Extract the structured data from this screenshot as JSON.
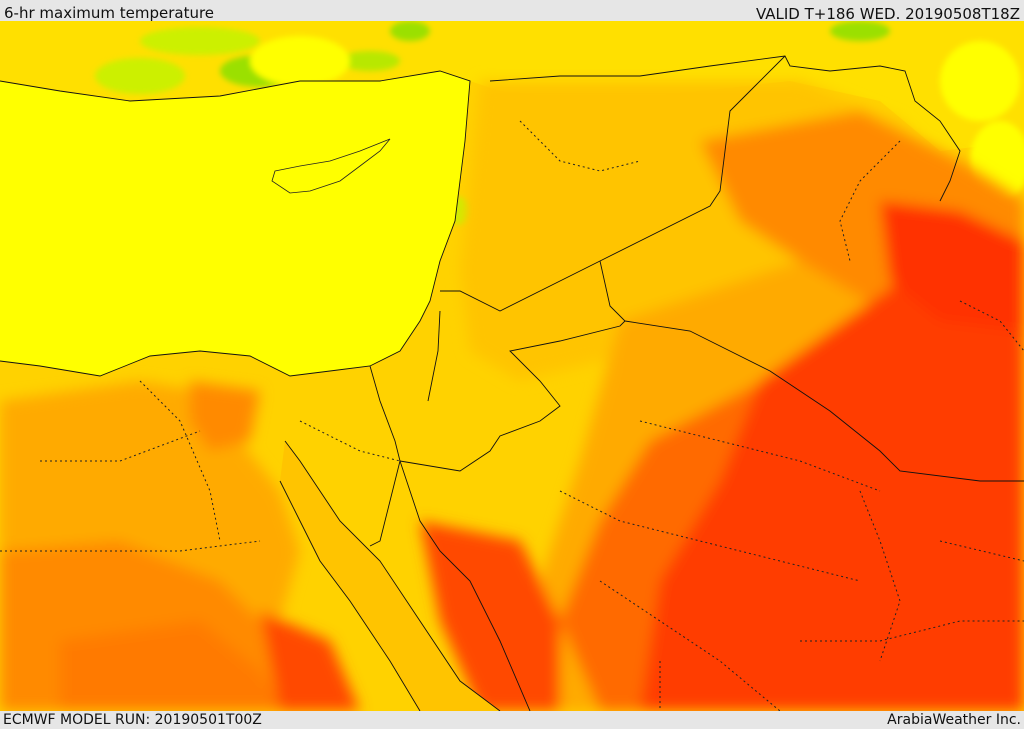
{
  "header": {
    "title": "6-hr maximum temperature",
    "valid": "VALID T+186 WED. 20190508T18Z"
  },
  "footer": {
    "model_run": "ECMWF MODEL RUN: 20190501T00Z",
    "credit": "ArabiaWeather Inc."
  },
  "map": {
    "region": "Eastern Mediterranean / Middle East",
    "palette": {
      "green": "#9be000",
      "lime": "#ccf000",
      "yellow": "#ffff00",
      "light_orange": "#ffd200",
      "orange": "#ffaa00",
      "dark_orange": "#ff7a00",
      "red_orange": "#ff4a00",
      "red": "#ff2000",
      "sea": "#ffff00"
    }
  }
}
